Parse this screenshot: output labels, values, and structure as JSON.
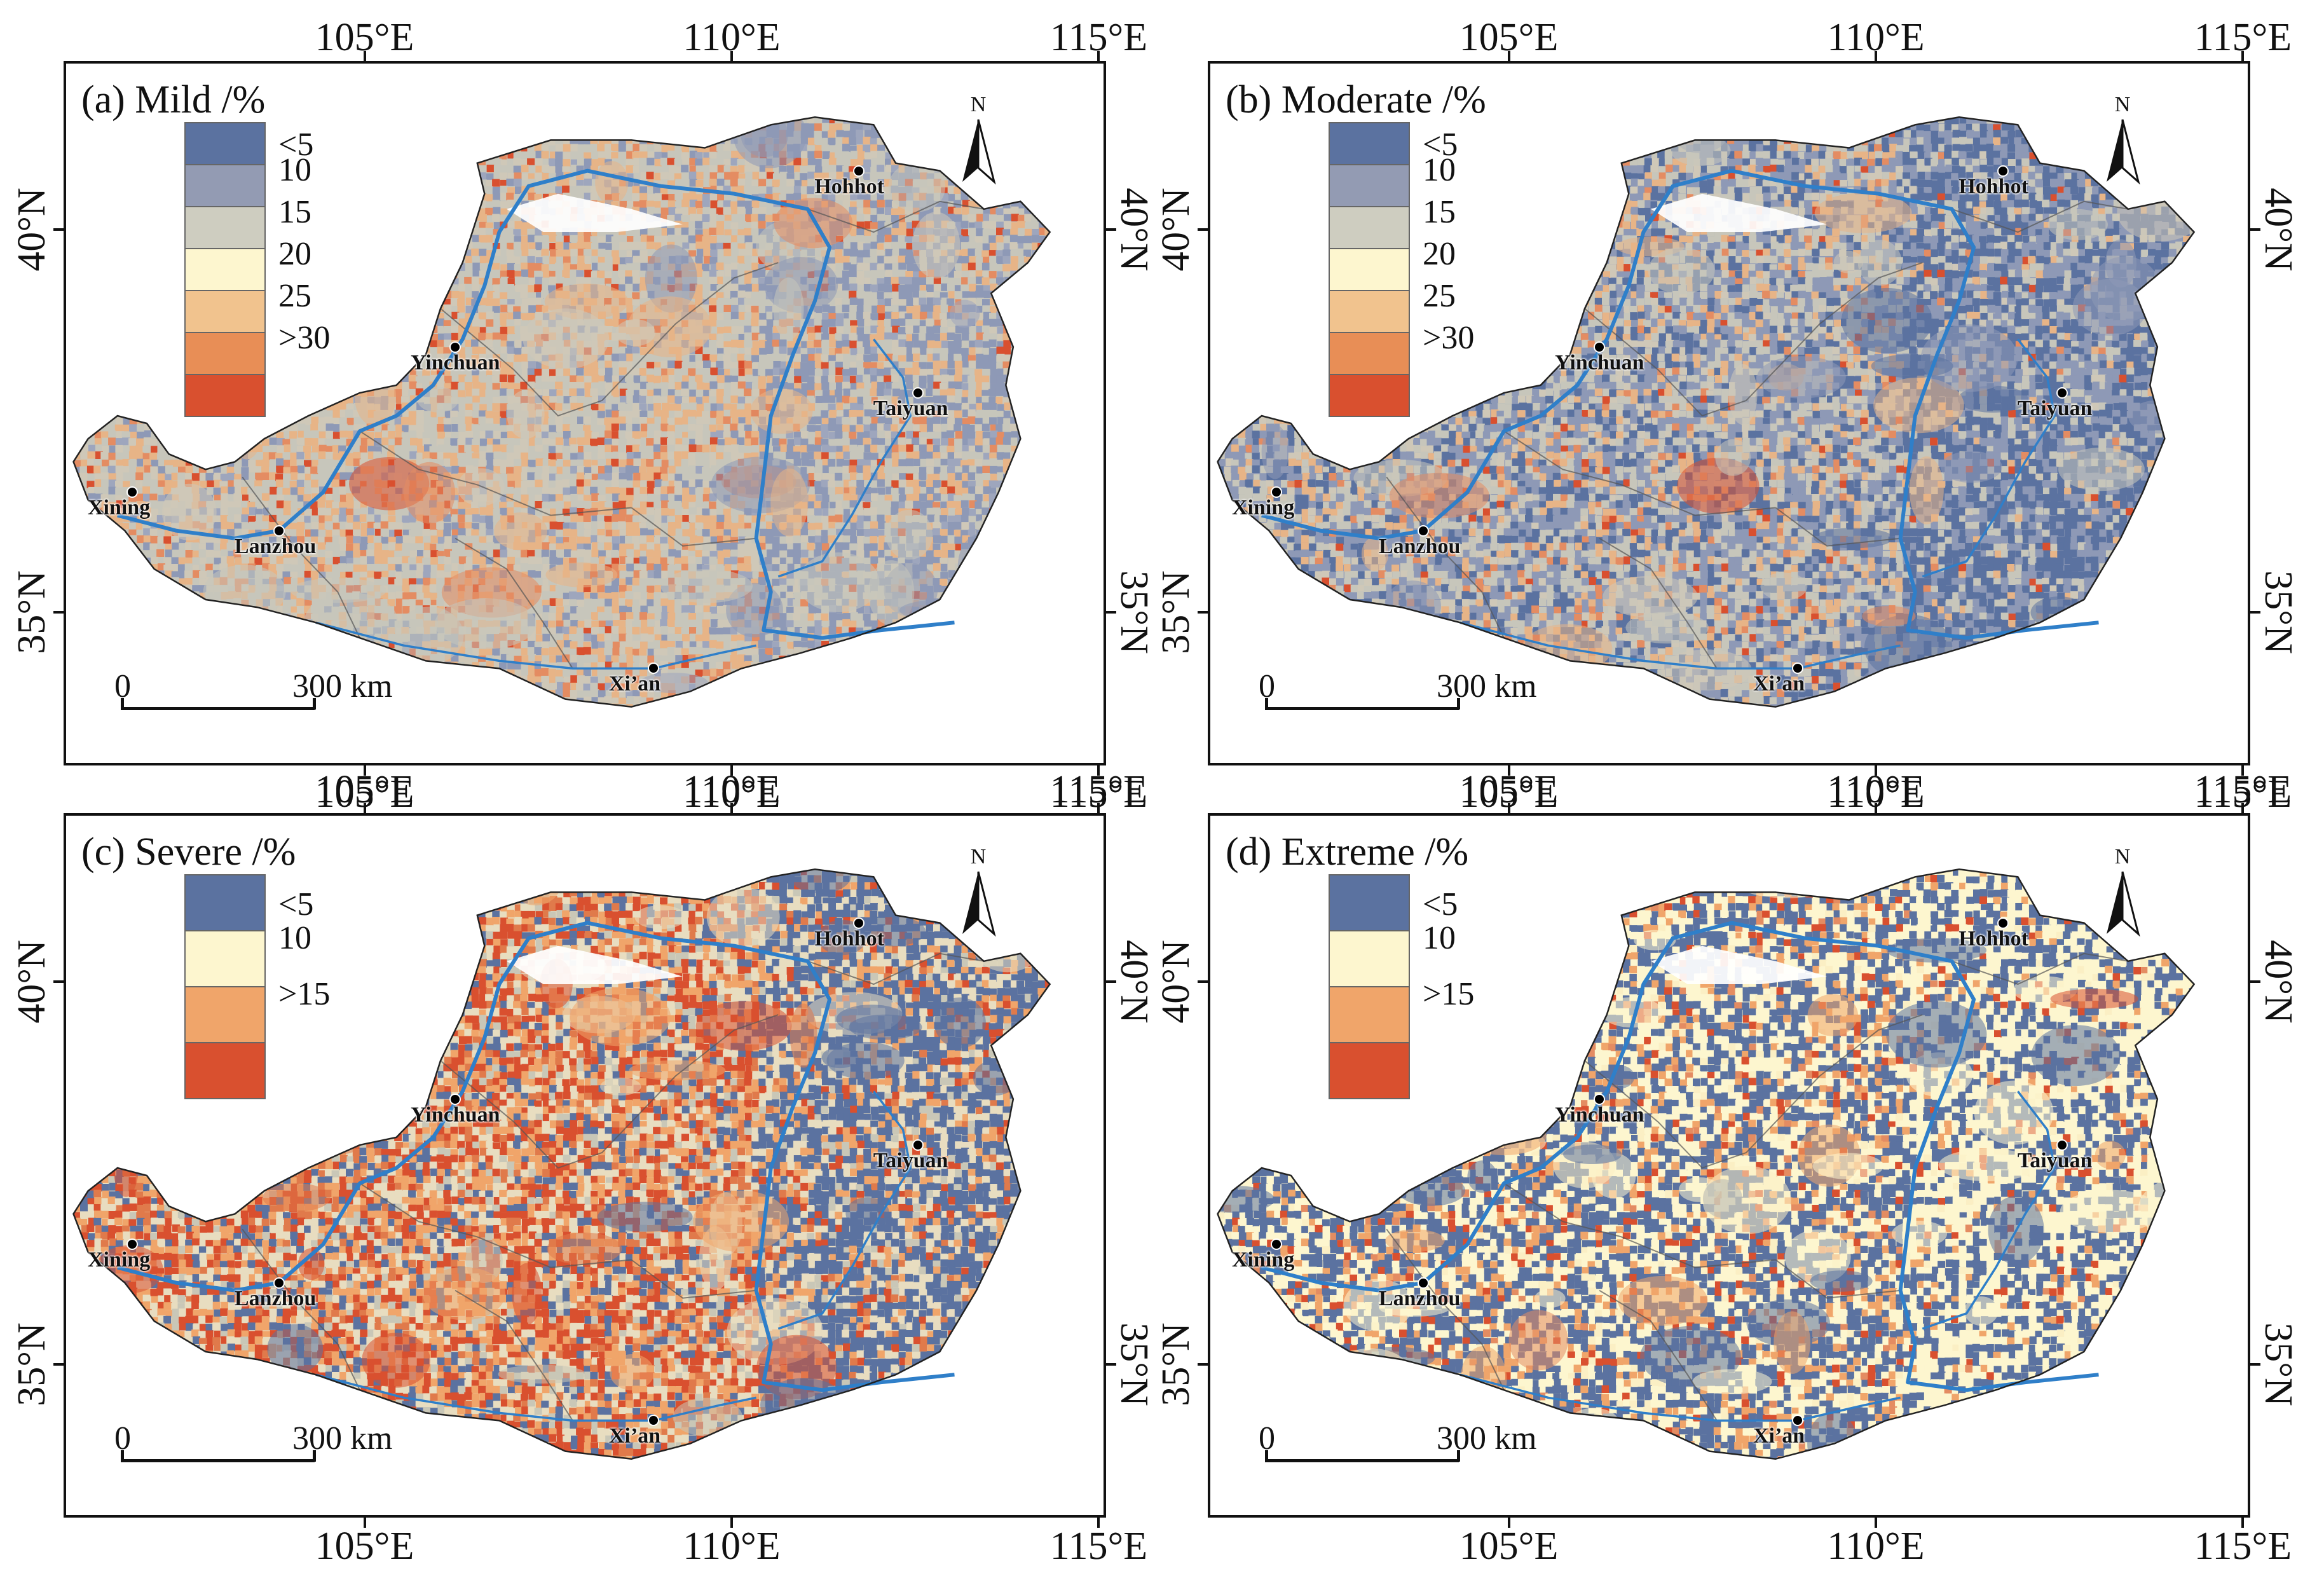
{
  "panels": [
    {
      "title": "(a) Mild /%",
      "legend": [
        {
          "label": "<5",
          "color": "#5b72a0"
        },
        {
          "label": "10",
          "color": "#939bb3"
        },
        {
          "label": "15",
          "color": "#cecdc0"
        },
        {
          "label": "20",
          "color": "#fdf6cf"
        },
        {
          "label": "25",
          "color": "#f1c38e"
        },
        {
          "label": ">30",
          "color": "#e88e56"
        },
        {
          "label": "",
          "color": "#d9502f"
        }
      ],
      "palette": [
        "#8e99b6",
        "#c7c6bb",
        "#e7b487",
        "#cfc8b8",
        "#9ea6bd",
        "#e48c62",
        "#d9502f",
        "#f3dcb0"
      ],
      "mix": {
        "west": [
          0.1,
          0.3,
          0.25,
          0.2,
          0.05,
          0.07,
          0.03
        ],
        "east": [
          0.32,
          0.26,
          0.14,
          0.12,
          0.08,
          0.05,
          0.03
        ]
      }
    },
    {
      "title": "(b) Moderate /%",
      "legend": [
        {
          "label": "<5",
          "color": "#5b72a0"
        },
        {
          "label": "10",
          "color": "#939bb3"
        },
        {
          "label": "15",
          "color": "#cecdc0"
        },
        {
          "label": "20",
          "color": "#fdf6cf"
        },
        {
          "label": "25",
          "color": "#f1c38e"
        },
        {
          "label": ">30",
          "color": "#e88e56"
        },
        {
          "label": "",
          "color": "#d9502f"
        }
      ],
      "palette": [
        "#5b72a0",
        "#8e99b6",
        "#c7c6bb",
        "#e7b487",
        "#cfc8b8",
        "#e48c62",
        "#d9502f"
      ],
      "mix": {
        "west": [
          0.2,
          0.28,
          0.26,
          0.12,
          0.08,
          0.04,
          0.02
        ],
        "east": [
          0.45,
          0.28,
          0.17,
          0.05,
          0.03,
          0.01,
          0.01
        ]
      }
    },
    {
      "title": "(c) Severe /%",
      "legend": [
        {
          "label": "<5",
          "color": "#5b72a0"
        },
        {
          "label": "10",
          "color": "#fdf6cf"
        },
        {
          "label": ">15",
          "color": "#f0a56a"
        },
        {
          "label": "",
          "color": "#d9502f"
        }
      ],
      "palette": [
        "#5b72a0",
        "#e8ddc0",
        "#f0a56a",
        "#d9502f",
        "#c9c7b7",
        "#e07a4b"
      ],
      "mix": {
        "west": [
          0.15,
          0.2,
          0.22,
          0.25,
          0.08,
          0.1
        ],
        "east": [
          0.5,
          0.2,
          0.12,
          0.08,
          0.06,
          0.04
        ]
      }
    },
    {
      "title": "(d) Extreme /%",
      "legend": [
        {
          "label": "<5",
          "color": "#5b72a0"
        },
        {
          "label": "10",
          "color": "#fdf6cf"
        },
        {
          "label": ">15",
          "color": "#f0a56a"
        },
        {
          "label": "",
          "color": "#d9502f"
        }
      ],
      "palette": [
        "#5b72a0",
        "#fdf6cf",
        "#f0a56a",
        "#d9502f",
        "#fbefc4",
        "#e48c62"
      ],
      "mix": {
        "west": [
          0.42,
          0.32,
          0.12,
          0.06,
          0.05,
          0.03
        ],
        "east": [
          0.38,
          0.48,
          0.06,
          0.03,
          0.04,
          0.01
        ]
      }
    }
  ],
  "axes": {
    "top_labels": [
      "105°E",
      "110°E",
      "115°E"
    ],
    "bottom_labels": [
      "105°E",
      "110°E",
      "115°E"
    ],
    "left_labels": [
      "40°N",
      "35°N"
    ],
    "right_labels": [
      "40°N",
      "35°N"
    ]
  },
  "north_label": "N",
  "scalebar": {
    "zero": "0",
    "distance": "300 km"
  },
  "cities": [
    {
      "name": "Hohhot",
      "lon": 111.7,
      "lat": 40.8
    },
    {
      "name": "Yinchuan",
      "lon": 106.2,
      "lat": 38.5
    },
    {
      "name": "Taiyuan",
      "lon": 112.5,
      "lat": 37.9
    },
    {
      "name": "Xining",
      "lon": 101.8,
      "lat": 36.6
    },
    {
      "name": "Lanzhou",
      "lon": 103.8,
      "lat": 36.1
    },
    {
      "name": "Xi’an",
      "lon": 108.9,
      "lat": 34.3
    }
  ],
  "colors": {
    "river": "#2f7fc9",
    "boundary": "#555555",
    "frame": "#111111"
  }
}
